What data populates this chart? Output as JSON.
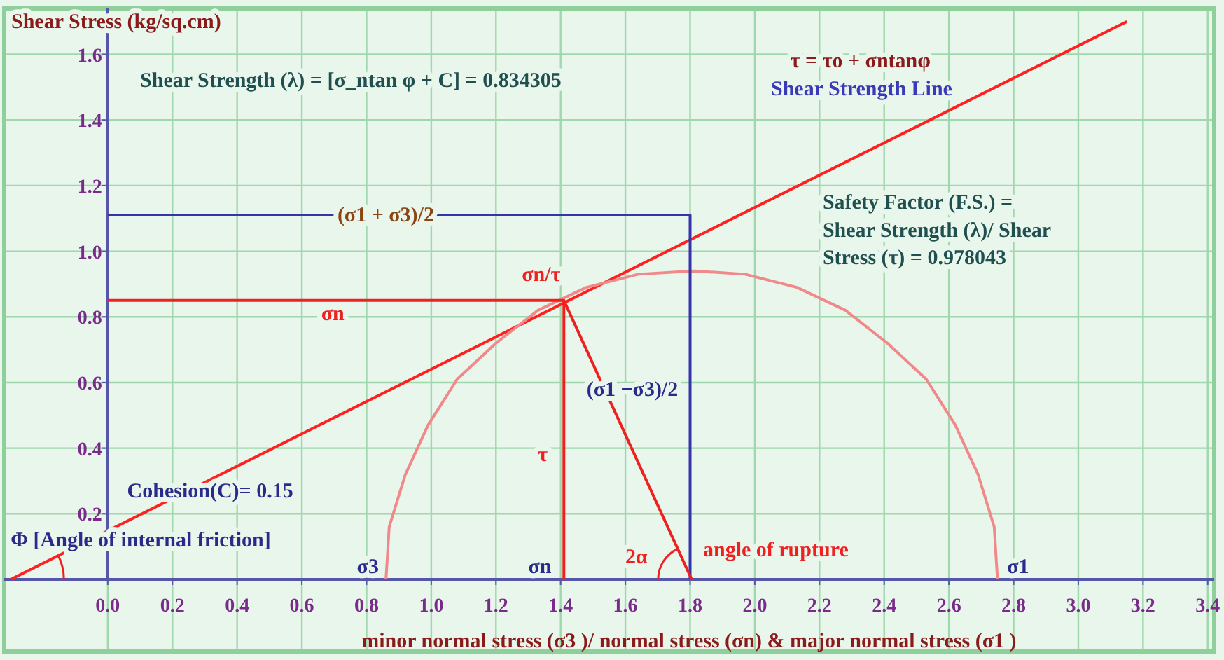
{
  "chart_data": {
    "type": "line",
    "ylabel": "Shear Stress (kg/sq.cm)",
    "xlabel": "minor normal stress (σ3 )/ normal stress (σn) & major normal stress (σ1 )",
    "xlim": [
      -0.32,
      3.42
    ],
    "ylim": [
      -0.22,
      1.74
    ],
    "xticks": [
      {
        "value": 0,
        "label": "0.0"
      },
      0.2,
      0.4,
      0.6,
      0.8,
      {
        "value": 1,
        "label": "1.0"
      },
      1.2,
      1.4,
      1.6,
      1.8,
      {
        "value": 2,
        "label": "2.0"
      },
      2.2,
      2.4,
      2.6,
      2.8,
      {
        "value": 3,
        "label": "3.0"
      },
      3.2,
      3.4
    ],
    "yticks": [
      0.2,
      0.4,
      0.6,
      0.8,
      {
        "value": 1,
        "label": "1.0"
      },
      1.2,
      1.4,
      1.6
    ],
    "grid": true,
    "marker": "none",
    "line_style": "solid",
    "series": [
      {
        "color": "#ff2020",
        "x": [
          -0.3,
          3.15
        ],
        "values": [
          0,
          1.7
        ]
      },
      {
        "color": "#f08a8a",
        "x": [
          2.75,
          2.74,
          2.69,
          2.62,
          2.53,
          2.41,
          2.28,
          2.13,
          1.97,
          1.81,
          1.64,
          1.48,
          1.33,
          1.2,
          1.08,
          0.99,
          0.92,
          0.87,
          0.86
        ],
        "values": [
          0,
          0.16,
          0.32,
          0.47,
          0.61,
          0.72,
          0.82,
          0.89,
          0.93,
          0.94,
          0.93,
          0.89,
          0.82,
          0.72,
          0.61,
          0.47,
          0.32,
          0.16,
          0
        ]
      },
      {
        "color": "#3535aa",
        "x": [
          0,
          1.8,
          1.8
        ],
        "values": [
          1.11,
          1.11,
          0
        ]
      },
      {
        "color": "#ee2020",
        "x": [
          0,
          1.41,
          1.41
        ],
        "values": [
          0.85,
          0.85,
          0
        ]
      },
      {
        "color": "#ee2020",
        "x": [
          1.41,
          1.805
        ],
        "values": [
          0.85,
          0
        ]
      }
    ],
    "annotations": [
      "Shear Strength (λ) = [σ_ntan φ + C] = 0.834305",
      "τ = τo + σntanφ",
      "Shear Strength Line",
      "(σ1 + σ3)/2",
      "Safety Factor (F.S.) =",
      "Shear Strength (λ)/ Shear",
      "Stress (τ) = 0.978043",
      "σn/τ",
      "σn",
      "(σ1 −σ3)/2",
      "τ",
      "Cohesion(C)= 0.15",
      "Φ [Angle of internal friction]",
      "σ3",
      "σn",
      "2α",
      "angle of rupture",
      "σ1"
    ]
  }
}
